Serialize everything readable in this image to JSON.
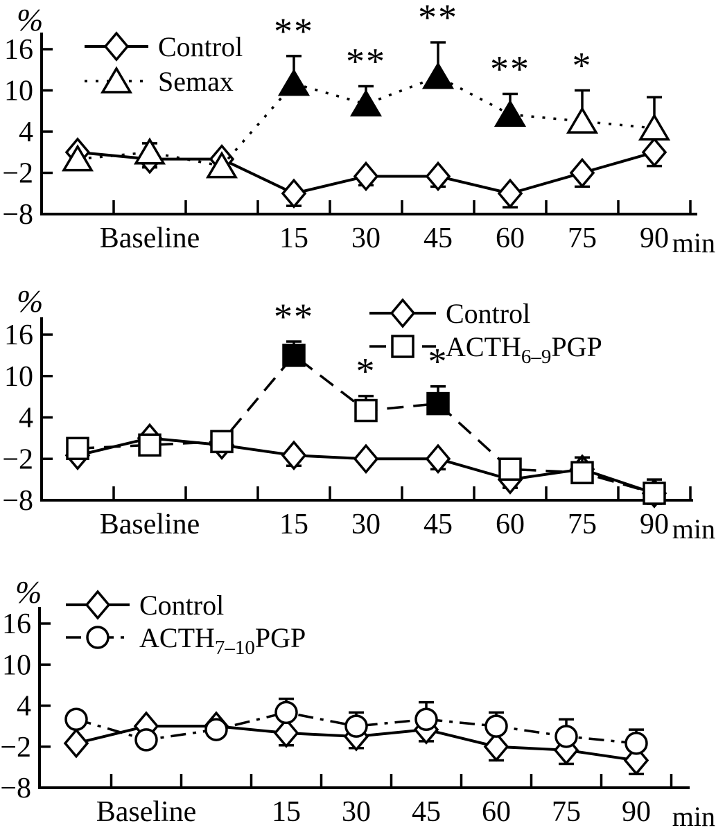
{
  "figure": {
    "background": "#ffffff",
    "ink": "#000000",
    "ylabel": "%",
    "xlabel": "min",
    "baseline_label": "Baseline"
  },
  "chart_data": [
    {
      "type": "line",
      "id": "semax-chart",
      "ylabel": "%",
      "xlabel": "min",
      "yticks": [
        16,
        10,
        4,
        -2,
        -8
      ],
      "ylim": [
        -8,
        16
      ],
      "x_labels": [
        "Baseline",
        "15",
        "30",
        "45",
        "60",
        "75",
        "90"
      ],
      "baseline_points": 3,
      "grid": false,
      "legend_position": "top-left",
      "series": [
        {
          "label": {
            "text": "Control"
          },
          "marker": "diamond",
          "line_style": "solid",
          "values": [
            1,
            0,
            0,
            -5,
            -2.5,
            -2.5,
            -5,
            -2,
            1
          ],
          "err_up": [
            0,
            0,
            0,
            0,
            0,
            0,
            0,
            0,
            0
          ],
          "err_down": [
            0,
            1.2,
            0,
            1.8,
            1.3,
            1.5,
            2,
            2,
            2
          ],
          "filled": [
            false,
            false,
            false,
            false,
            false,
            false,
            false,
            false,
            false
          ]
        },
        {
          "label": {
            "text": "Semax"
          },
          "marker": "triangle",
          "line_style": "dotted",
          "values": [
            0,
            1,
            -1,
            11,
            8,
            12,
            6.5,
            5.5,
            4.5
          ],
          "err_up": [
            0,
            1.3,
            0,
            4,
            2.6,
            5,
            3,
            4.5,
            4.5
          ],
          "err_down": [
            0,
            0,
            0,
            0,
            0,
            0,
            0,
            0,
            0
          ],
          "filled": [
            false,
            false,
            false,
            true,
            true,
            true,
            true,
            false,
            false
          ]
        }
      ],
      "significance": [
        {
          "index": 3,
          "mark": "**"
        },
        {
          "index": 4,
          "mark": "**"
        },
        {
          "index": 5,
          "mark": "**"
        },
        {
          "index": 6,
          "mark": "**"
        },
        {
          "index": 7,
          "mark": "*"
        }
      ]
    },
    {
      "type": "line",
      "id": "acth69-chart",
      "ylabel": "%",
      "xlabel": "min",
      "yticks": [
        16,
        10,
        4,
        -2,
        -8
      ],
      "ylim": [
        -8,
        16
      ],
      "x_labels": [
        "Baseline",
        "15",
        "30",
        "45",
        "60",
        "75",
        "90"
      ],
      "baseline_points": 3,
      "grid": false,
      "legend_position": "top-right",
      "series": [
        {
          "label": {
            "text": "Control"
          },
          "marker": "diamond",
          "line_style": "solid",
          "values": [
            -1.5,
            1,
            0,
            -1.5,
            -2,
            -2,
            -5,
            -3.5,
            -7
          ],
          "err_up": [
            0,
            0,
            0,
            0,
            0,
            0,
            0,
            0,
            0
          ],
          "err_down": [
            0.6,
            0,
            0,
            1.5,
            0,
            1.5,
            1.2,
            0,
            0
          ],
          "filled": [
            false,
            false,
            false,
            false,
            false,
            false,
            false,
            false,
            false
          ]
        },
        {
          "label": {
            "pre": "ACTH",
            "sub": "6–9",
            "post": "PGP"
          },
          "marker": "square",
          "line_style": "dashed",
          "values": [
            -0.5,
            0,
            0.5,
            13,
            5,
            6,
            -3.5,
            -4,
            -7
          ],
          "err_up": [
            0,
            0,
            0,
            2,
            2.1,
            2.5,
            1.5,
            2.2,
            2
          ],
          "err_down": [
            0,
            0,
            0,
            0,
            0,
            0,
            0,
            0,
            1.5
          ],
          "filled": [
            false,
            false,
            false,
            true,
            false,
            true,
            false,
            false,
            false
          ]
        }
      ],
      "significance": [
        {
          "index": 3,
          "mark": "**"
        },
        {
          "index": 4,
          "mark": "*"
        },
        {
          "index": 5,
          "mark": "*"
        }
      ]
    },
    {
      "type": "line",
      "id": "acth710-chart",
      "ylabel": "%",
      "xlabel": "min",
      "yticks": [
        16,
        10,
        4,
        -2,
        -8
      ],
      "ylim": [
        -8,
        16
      ],
      "x_labels": [
        "Baseline",
        "15",
        "30",
        "45",
        "60",
        "75",
        "90"
      ],
      "baseline_points": 3,
      "grid": false,
      "legend_position": "top-left",
      "series": [
        {
          "label": {
            "text": "Control"
          },
          "marker": "diamond",
          "line_style": "solid",
          "values": [
            -1.5,
            1,
            1,
            0,
            -0.5,
            0.5,
            -2,
            -2.5,
            -4
          ],
          "err_up": [
            0,
            0,
            0,
            0,
            0,
            0,
            0,
            0,
            0
          ],
          "err_down": [
            0,
            0,
            0,
            1.8,
            1.7,
            1.7,
            2,
            2,
            2
          ],
          "filled": [
            false,
            false,
            false,
            false,
            false,
            false,
            false,
            false,
            false
          ]
        },
        {
          "label": {
            "pre": "ACTH",
            "sub": "7–10",
            "post": "PGP"
          },
          "marker": "circle",
          "line_style": "dashdot",
          "values": [
            2,
            -1,
            0.5,
            3,
            1,
            2,
            1,
            -0.5,
            -1.5
          ],
          "err_up": [
            0,
            0,
            0,
            2,
            2,
            2.5,
            2,
            2.5,
            2
          ],
          "err_down": [
            0,
            0,
            0,
            0,
            0,
            0,
            0,
            0,
            0
          ],
          "filled": [
            false,
            false,
            false,
            false,
            false,
            false,
            false,
            false,
            false
          ]
        }
      ],
      "significance": []
    }
  ]
}
